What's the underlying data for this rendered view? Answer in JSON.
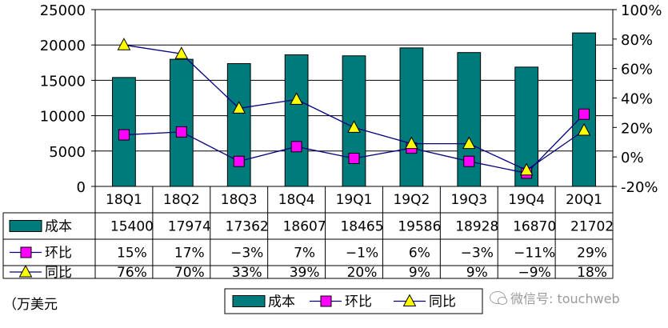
{
  "chart_data": {
    "type": "bar",
    "categories": [
      "18Q1",
      "18Q2",
      "18Q3",
      "18Q4",
      "19Q1",
      "19Q2",
      "19Q3",
      "19Q4",
      "20Q1"
    ],
    "series": [
      {
        "name": "成本",
        "kind": "bar",
        "axis": "left",
        "color": "#007b7b",
        "values": [
          15400,
          17974,
          17362,
          18607,
          18465,
          19586,
          18928,
          16870,
          21702
        ],
        "labels": [
          "15400",
          "17974",
          "17362",
          "18607",
          "18465",
          "19586",
          "18928",
          "16870",
          "21702"
        ]
      },
      {
        "name": "环比",
        "kind": "line",
        "axis": "right",
        "marker": "square",
        "color": "#ff00ff",
        "values": [
          15,
          17,
          -3,
          7,
          -1,
          6,
          -3,
          -11,
          29
        ],
        "labels": [
          "15%",
          "17%",
          "−3%",
          "7%",
          "−1%",
          "6%",
          "−3%",
          "−11%",
          "29%"
        ]
      },
      {
        "name": "同比",
        "kind": "line",
        "axis": "right",
        "marker": "triangle",
        "color": "#ffff00",
        "values": [
          76,
          70,
          33,
          39,
          20,
          9,
          9,
          -9,
          18
        ],
        "labels": [
          "76%",
          "70%",
          "33%",
          "39%",
          "20%",
          "9%",
          "9%",
          "−9%",
          "18%"
        ]
      }
    ],
    "y_left": {
      "min": 0,
      "max": 25000,
      "ticks": [
        "0",
        "5000",
        "10000",
        "15000",
        "20000",
        "25000"
      ]
    },
    "y_right": {
      "min": -20,
      "max": 100,
      "ticks": [
        "-20%",
        "0%",
        "20%",
        "40%",
        "60%",
        "80%",
        "100%"
      ]
    },
    "line_color": "#000080",
    "grid": true,
    "legend_position": "bottom",
    "data_table": true
  },
  "unit_label": "（万美元",
  "watermark": "微信号: touchweb"
}
